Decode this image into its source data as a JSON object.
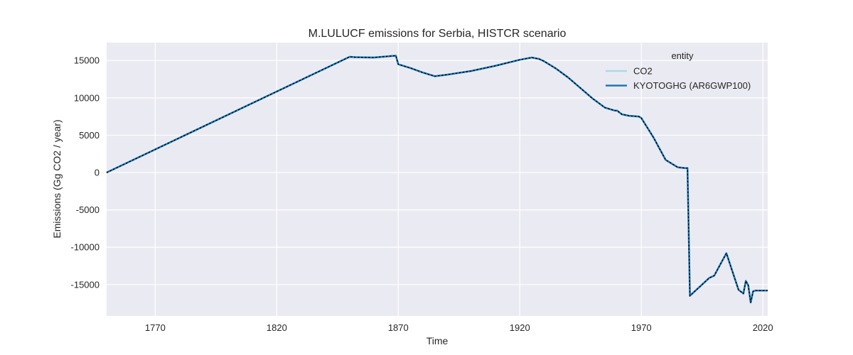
{
  "chart_data": {
    "type": "line",
    "title": "M.LULUCF emissions for Serbia, HISTCR scenario",
    "xlabel": "Time",
    "ylabel": "Emissions (Gg CO2 / year)",
    "xlim": [
      1750,
      2022
    ],
    "ylim": [
      -19200,
      17400
    ],
    "xticks": [
      1770,
      1820,
      1870,
      1920,
      1970,
      2020
    ],
    "yticks": [
      15000,
      10000,
      5000,
      0,
      -5000,
      -10000,
      -15000
    ],
    "grid": true,
    "legend": {
      "title": "entity",
      "placement": "top-right"
    },
    "series": [
      {
        "name": "CO2",
        "color": "#a6dbe8",
        "style": "solid",
        "x": [
          1750,
          1850,
          1852,
          1860,
          1869,
          1870,
          1875,
          1880,
          1885,
          1890,
          1900,
          1910,
          1920,
          1925,
          1928,
          1930,
          1935,
          1940,
          1945,
          1950,
          1955,
          1959,
          1960,
          1962,
          1965,
          1969,
          1970,
          1975,
          1980,
          1985,
          1988,
          1989,
          1990,
          1995,
          1998,
          2000,
          2005,
          2010,
          2012,
          2013,
          2014,
          2015,
          2016,
          2017,
          2018,
          2020,
          2022
        ],
        "y": [
          0,
          15500,
          15450,
          15400,
          15650,
          14500,
          14000,
          13400,
          12900,
          13100,
          13600,
          14300,
          15100,
          15400,
          15200,
          14900,
          13900,
          12700,
          11300,
          9900,
          8700,
          8300,
          8300,
          7800,
          7600,
          7500,
          7300,
          4700,
          1700,
          700,
          600,
          600,
          -16500,
          -15000,
          -14100,
          -13800,
          -10800,
          -15700,
          -16200,
          -14500,
          -15100,
          -17400,
          -15900,
          -15800,
          -15800,
          -15800,
          -15800
        ]
      },
      {
        "name": "KYOTOGHG (AR6GWP100)",
        "color": "#1f77b4",
        "style": "dashed",
        "x": [
          1750,
          1850,
          1852,
          1860,
          1869,
          1870,
          1875,
          1880,
          1885,
          1890,
          1900,
          1910,
          1920,
          1925,
          1928,
          1930,
          1935,
          1940,
          1945,
          1950,
          1955,
          1959,
          1960,
          1962,
          1965,
          1969,
          1970,
          1975,
          1980,
          1985,
          1988,
          1989,
          1990,
          1995,
          1998,
          2000,
          2005,
          2010,
          2012,
          2013,
          2014,
          2015,
          2016,
          2017,
          2018,
          2020,
          2022
        ],
        "y": [
          0,
          15500,
          15450,
          15400,
          15650,
          14500,
          14000,
          13400,
          12900,
          13100,
          13600,
          14300,
          15100,
          15400,
          15200,
          14900,
          13900,
          12700,
          11300,
          9900,
          8700,
          8300,
          8300,
          7800,
          7600,
          7500,
          7300,
          4700,
          1700,
          700,
          600,
          600,
          -16500,
          -15000,
          -14100,
          -13800,
          -10800,
          -15700,
          -16200,
          -14500,
          -15100,
          -17400,
          -15900,
          -15800,
          -15800,
          -15800,
          -15800
        ]
      }
    ]
  }
}
